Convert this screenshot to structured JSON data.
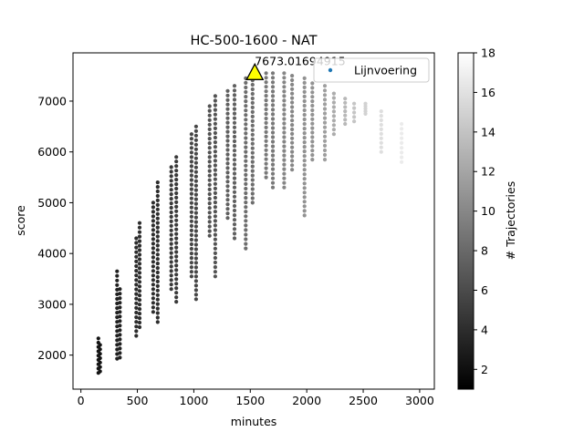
{
  "chart_data": {
    "type": "scatter",
    "title": "HC-500-1600 - NAT",
    "xlabel": "minutes",
    "ylabel": "score",
    "xlim": [
      -70,
      3130
    ],
    "ylim": [
      1330,
      7950
    ],
    "x_ticks": [
      0,
      500,
      1000,
      1500,
      2000,
      2500,
      3000
    ],
    "y_ticks": [
      2000,
      3000,
      4000,
      5000,
      6000,
      7000
    ],
    "grid": false,
    "colorbar": {
      "label": "# Trajectories",
      "range": [
        1,
        18
      ],
      "ticks": [
        2,
        4,
        6,
        8,
        10,
        12,
        14,
        16,
        18
      ],
      "colormap": "grayscale"
    },
    "legend": {
      "entries": [
        "Lijnvoering"
      ],
      "placement": "top-right",
      "marker_color": "#1f77b4"
    },
    "best_point": {
      "x": 1540,
      "y": 7550,
      "label": "7673.01694915",
      "color": "#ffff00"
    },
    "series": [
      {
        "x": 155,
        "y_min": 1650,
        "y_max": 2330,
        "trajectories": 1
      },
      {
        "x": 170,
        "y_min": 1680,
        "y_max": 2200,
        "trajectories": 1
      },
      {
        "x": 320,
        "y_min": 1930,
        "y_max": 3650,
        "trajectories": 2
      },
      {
        "x": 345,
        "y_min": 1950,
        "y_max": 3300,
        "trajectories": 2
      },
      {
        "x": 490,
        "y_min": 2380,
        "y_max": 4300,
        "trajectories": 3
      },
      {
        "x": 520,
        "y_min": 2550,
        "y_max": 4600,
        "trajectories": 3
      },
      {
        "x": 640,
        "y_min": 2850,
        "y_max": 5000,
        "trajectories": 3
      },
      {
        "x": 680,
        "y_min": 2650,
        "y_max": 5400,
        "trajectories": 3
      },
      {
        "x": 800,
        "y_min": 3300,
        "y_max": 5700,
        "trajectories": 4
      },
      {
        "x": 845,
        "y_min": 3050,
        "y_max": 5900,
        "trajectories": 4
      },
      {
        "x": 980,
        "y_min": 3550,
        "y_max": 6350,
        "trajectories": 5
      },
      {
        "x": 1020,
        "y_min": 3100,
        "y_max": 6500,
        "trajectories": 5
      },
      {
        "x": 1140,
        "y_min": 4350,
        "y_max": 6900,
        "trajectories": 6
      },
      {
        "x": 1190,
        "y_min": 3550,
        "y_max": 7100,
        "trajectories": 6
      },
      {
        "x": 1300,
        "y_min": 4700,
        "y_max": 7200,
        "trajectories": 7
      },
      {
        "x": 1360,
        "y_min": 4300,
        "y_max": 7300,
        "trajectories": 7
      },
      {
        "x": 1460,
        "y_min": 4100,
        "y_max": 7450,
        "trajectories": 8
      },
      {
        "x": 1520,
        "y_min": 5000,
        "y_max": 7500,
        "trajectories": 8
      },
      {
        "x": 1640,
        "y_min": 5500,
        "y_max": 7550,
        "trajectories": 9
      },
      {
        "x": 1700,
        "y_min": 5300,
        "y_max": 7550,
        "trajectories": 9
      },
      {
        "x": 1800,
        "y_min": 5300,
        "y_max": 7550,
        "trajectories": 10
      },
      {
        "x": 1870,
        "y_min": 5650,
        "y_max": 7500,
        "trajectories": 10
      },
      {
        "x": 1980,
        "y_min": 4750,
        "y_max": 7450,
        "trajectories": 11
      },
      {
        "x": 2050,
        "y_min": 5850,
        "y_max": 7350,
        "trajectories": 11
      },
      {
        "x": 2160,
        "y_min": 5850,
        "y_max": 7300,
        "trajectories": 12
      },
      {
        "x": 2240,
        "y_min": 6350,
        "y_max": 7150,
        "trajectories": 13
      },
      {
        "x": 2340,
        "y_min": 6550,
        "y_max": 7050,
        "trajectories": 14
      },
      {
        "x": 2420,
        "y_min": 6600,
        "y_max": 6950,
        "trajectories": 15
      },
      {
        "x": 2520,
        "y_min": 6750,
        "y_max": 6950,
        "trajectories": 16
      },
      {
        "x": 2660,
        "y_min": 6000,
        "y_max": 6800,
        "trajectories": 17
      },
      {
        "x": 2840,
        "y_min": 5800,
        "y_max": 6550,
        "trajectories": 18
      }
    ]
  }
}
